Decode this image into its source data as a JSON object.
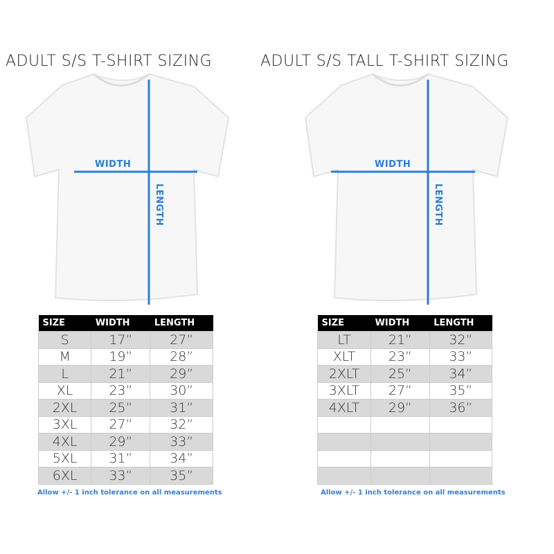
{
  "accent_color": "#2a7fd4",
  "left": {
    "title": "ADULT S/S T-SHIRT SIZING",
    "width_label": "WIDTH",
    "length_label": "LENGTH",
    "headers": [
      "SIZE",
      "WIDTH",
      "LENGTH"
    ],
    "rows": [
      [
        "S",
        "17”",
        "27”"
      ],
      [
        "M",
        "19”",
        "28”"
      ],
      [
        "L",
        "21”",
        "29”"
      ],
      [
        "XL",
        "23”",
        "30”"
      ],
      [
        "2XL",
        "25”",
        "31”"
      ],
      [
        "3XL",
        "27”",
        "32”"
      ],
      [
        "4XL",
        "29”",
        "33”"
      ],
      [
        "5XL",
        "31”",
        "34”"
      ],
      [
        "6XL",
        "33”",
        "35”"
      ]
    ],
    "note": "Allow +/- 1 inch tolerance on all measurements"
  },
  "right": {
    "title": "ADULT S/S TALL T-SHIRT SIZING",
    "width_label": "WIDTH",
    "length_label": "LENGTH",
    "headers": [
      "SIZE",
      "WIDTH",
      "LENGTH"
    ],
    "rows": [
      [
        "LT",
        "21”",
        "32”"
      ],
      [
        "XLT",
        "23”",
        "33”"
      ],
      [
        "2XLT",
        "25”",
        "34”"
      ],
      [
        "3XLT",
        "27”",
        "35”"
      ],
      [
        "4XLT",
        "29”",
        "36”"
      ],
      [
        "",
        "",
        ""
      ],
      [
        "",
        "",
        ""
      ],
      [
        "",
        "",
        ""
      ],
      [
        "",
        "",
        ""
      ]
    ],
    "note": "Allow +/- 1 inch tolerance on all measurements"
  }
}
